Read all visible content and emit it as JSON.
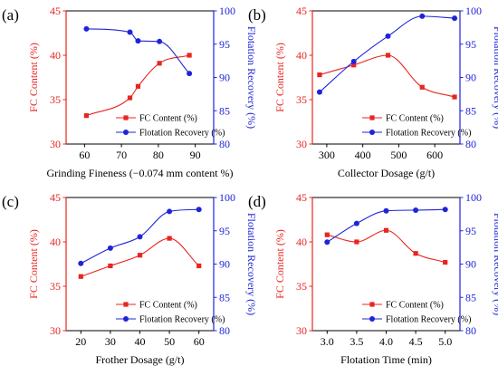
{
  "colors": {
    "fc": "#e8251f",
    "recovery": "#1f24d8",
    "axis": "#000000"
  },
  "chart_data": [
    {
      "type": "line",
      "panel_label": "(a)",
      "xlabel": "Grinding Fineness (−0.074 mm content %)",
      "ylabel_left": "FC Content (%)",
      "ylabel_right": "Flotation Recovery (%)",
      "xlim": [
        55,
        95
      ],
      "x_ticks": [
        60,
        70,
        80,
        90
      ],
      "ylim_left": [
        30,
        45
      ],
      "y_ticks_left": [
        30,
        35,
        40,
        45
      ],
      "ylim_right": [
        80,
        100
      ],
      "y_ticks_right": [
        80,
        85,
        90,
        95,
        100
      ],
      "grid": false,
      "legend_position": "bottom-right",
      "series": [
        {
          "name": "FC Content (%)",
          "axis": "left",
          "marker": "square",
          "color": "#e8251f",
          "x": [
            60.5,
            72.3,
            74.5,
            80.3,
            88.4
          ],
          "y": [
            33.2,
            35.2,
            36.5,
            39.1,
            40.0
          ]
        },
        {
          "name": "Flotation Recovery (%)",
          "axis": "right",
          "marker": "circle",
          "color": "#1f24d8",
          "x": [
            60.5,
            72.3,
            74.5,
            80.3,
            88.4
          ],
          "y": [
            97.3,
            96.8,
            95.5,
            95.4,
            90.6
          ]
        }
      ]
    },
    {
      "type": "line",
      "panel_label": "(b)",
      "xlabel": "Collector Dosage (g/t)",
      "ylabel_left": "FC Content (%)",
      "ylabel_right": "Flotation Recovery (%)",
      "xlim": [
        260,
        670
      ],
      "x_ticks": [
        300,
        400,
        500,
        600
      ],
      "ylim_left": [
        30,
        45
      ],
      "y_ticks_left": [
        30,
        35,
        40,
        45
      ],
      "ylim_right": [
        80,
        100
      ],
      "y_ticks_right": [
        80,
        85,
        90,
        95,
        100
      ],
      "grid": false,
      "legend_position": "bottom-right",
      "series": [
        {
          "name": "FC Content (%)",
          "axis": "left",
          "marker": "square",
          "color": "#e8251f",
          "x": [
            280,
            375,
            470,
            565,
            655
          ],
          "y": [
            37.8,
            38.9,
            40.0,
            36.4,
            35.3
          ]
        },
        {
          "name": "Flotation Recovery (%)",
          "axis": "right",
          "marker": "circle",
          "color": "#1f24d8",
          "x": [
            280,
            375,
            470,
            565,
            655
          ],
          "y": [
            87.8,
            92.4,
            96.2,
            99.2,
            98.9
          ]
        }
      ]
    },
    {
      "type": "line",
      "panel_label": "(c)",
      "xlabel": "Frother Dosage (g/t)",
      "ylabel_left": "FC Content (%)",
      "ylabel_right": "Flotation Recovery (%)",
      "xlim": [
        15,
        65
      ],
      "x_ticks": [
        20,
        30,
        40,
        50,
        60
      ],
      "ylim_left": [
        30,
        45
      ],
      "y_ticks_left": [
        30,
        35,
        40,
        45
      ],
      "ylim_right": [
        80,
        100
      ],
      "y_ticks_right": [
        80,
        85,
        90,
        95,
        100
      ],
      "grid": false,
      "legend_position": "bottom-right",
      "series": [
        {
          "name": "FC Content (%)",
          "axis": "left",
          "marker": "square",
          "color": "#e8251f",
          "x": [
            20,
            30,
            40,
            50,
            60
          ],
          "y": [
            36.1,
            37.3,
            38.5,
            40.4,
            37.3
          ]
        },
        {
          "name": "Flotation Recovery (%)",
          "axis": "right",
          "marker": "circle",
          "color": "#1f24d8",
          "x": [
            20,
            30,
            40,
            50,
            60
          ],
          "y": [
            90.1,
            92.4,
            94.1,
            97.9,
            98.2
          ]
        }
      ]
    },
    {
      "type": "line",
      "panel_label": "(d)",
      "xlabel": "Flotation Time (min)",
      "ylabel_left": "FC Content (%)",
      "ylabel_right": "Flotation Recovery (%)",
      "xlim": [
        2.75,
        5.25
      ],
      "x_ticks": [
        3.0,
        3.5,
        4.0,
        4.5,
        5.0
      ],
      "x_tick_decimals": 1,
      "ylim_left": [
        30,
        45
      ],
      "y_ticks_left": [
        30,
        35,
        40,
        45
      ],
      "ylim_right": [
        80,
        100
      ],
      "y_ticks_right": [
        80,
        85,
        90,
        95,
        100
      ],
      "grid": false,
      "legend_position": "bottom-right",
      "series": [
        {
          "name": "FC Content (%)",
          "axis": "left",
          "marker": "square",
          "color": "#e8251f",
          "x": [
            3.0,
            3.5,
            4.0,
            4.5,
            5.0
          ],
          "y": [
            40.8,
            40.0,
            41.3,
            38.7,
            37.7
          ]
        },
        {
          "name": "Flotation Recovery (%)",
          "axis": "right",
          "marker": "circle",
          "color": "#1f24d8",
          "x": [
            3.0,
            3.5,
            4.0,
            4.5,
            5.0
          ],
          "y": [
            93.3,
            96.1,
            98.0,
            98.1,
            98.2
          ]
        }
      ]
    }
  ]
}
